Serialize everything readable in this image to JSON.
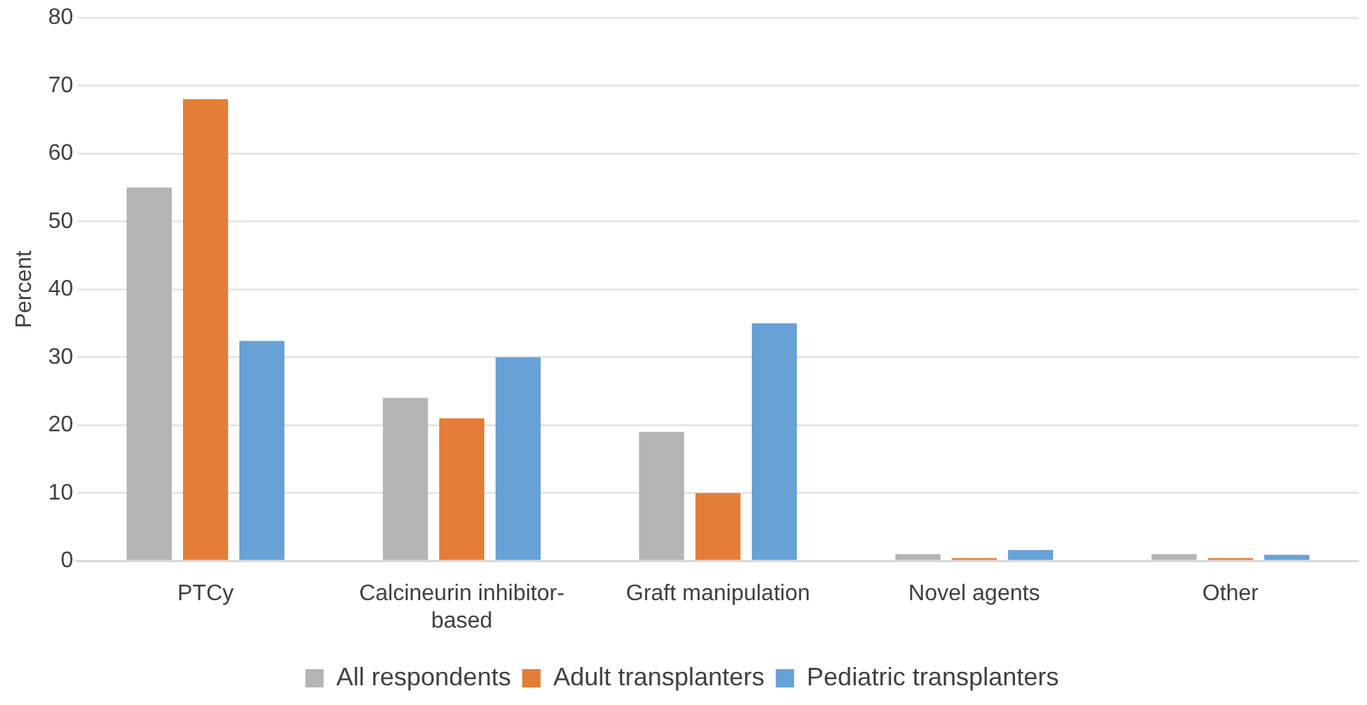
{
  "chart_data": {
    "type": "bar",
    "ylabel": "Percent",
    "categories": [
      "PTCy",
      "Calcineurin inhibitor-based",
      "Graft manipulation",
      "Novel agents",
      "Other"
    ],
    "series": [
      {
        "name": "All respondents",
        "color": "#b4b4b4",
        "values": [
          55,
          24,
          19,
          1,
          1
        ]
      },
      {
        "name": "Adult transplanters",
        "color": "#e47d38",
        "values": [
          68,
          21,
          10,
          0.4,
          0.4
        ]
      },
      {
        "name": "Pediatric transplanters",
        "color": "#68a1d6",
        "values": [
          32.4,
          30,
          35,
          1.6,
          0.9
        ]
      }
    ],
    "ylim": [
      0,
      80
    ],
    "yticks": [
      0,
      10,
      20,
      30,
      40,
      50,
      60,
      70,
      80
    ],
    "grid": "y",
    "legend": "bottom"
  }
}
